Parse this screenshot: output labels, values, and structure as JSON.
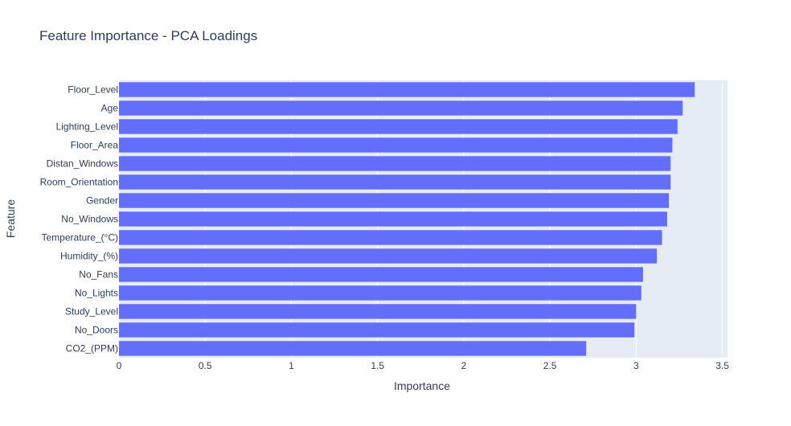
{
  "chart_data": {
    "type": "bar",
    "orientation": "horizontal",
    "title": "Feature Importance - PCA Loadings",
    "xlabel": "Importance",
    "ylabel": "Feature",
    "xlim": [
      0,
      3.53
    ],
    "xticks": [
      0,
      0.5,
      1,
      1.5,
      2,
      2.5,
      3,
      3.5
    ],
    "xtick_labels": [
      "0",
      "0.5",
      "1",
      "1.5",
      "2",
      "2.5",
      "3",
      "3.5"
    ],
    "grid": true,
    "legend": "none",
    "categories": [
      "Floor_Level",
      "Age",
      "Lighting_Level",
      "Floor_Area",
      "Distan_Windows",
      "Room_Orientation",
      "Gender",
      "No_Windows",
      "Temperature_(°C)",
      "Humidity_(%)",
      "No_Fans",
      "No_Lights",
      "Study_Level",
      "No_Doors",
      "CO2_(PPM)"
    ],
    "values": [
      3.34,
      3.27,
      3.24,
      3.21,
      3.2,
      3.2,
      3.19,
      3.18,
      3.15,
      3.12,
      3.04,
      3.03,
      3.0,
      2.99,
      2.71
    ],
    "colors": {
      "bar": "#636efa",
      "plot_bg": "#e5ecf6",
      "grid": "#ffffff",
      "text": "#2a3f5f",
      "title": "#2a3f5f"
    }
  }
}
